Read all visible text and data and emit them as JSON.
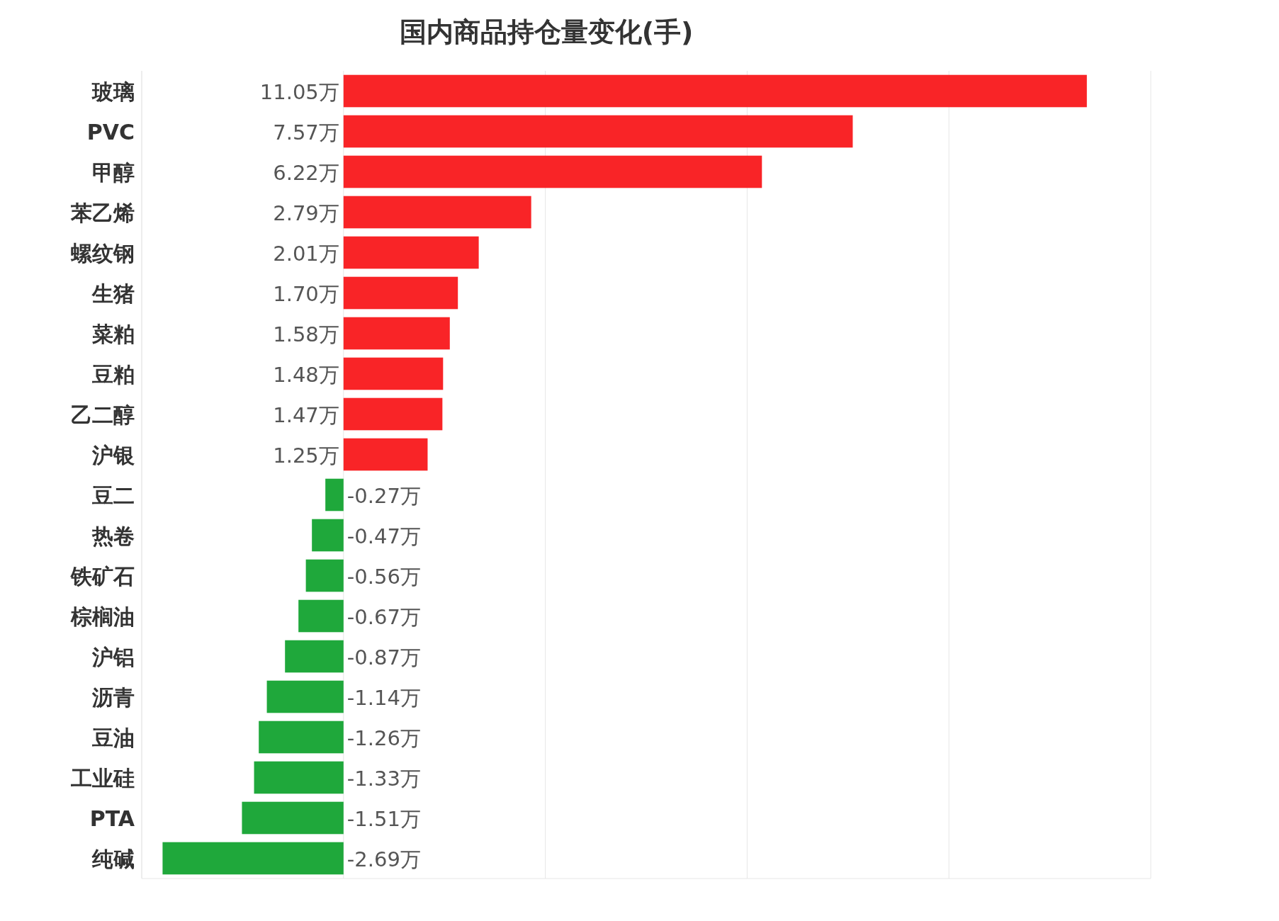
{
  "chart_data": {
    "type": "bar",
    "orientation": "horizontal",
    "title": "国内商品持仓量变化(手)",
    "categories": [
      "玻璃",
      "PVC",
      "甲醇",
      "苯乙烯",
      "螺纹钢",
      "生猪",
      "菜粕",
      "豆粕",
      "乙二醇",
      "沪银",
      "豆二",
      "热卷",
      "铁矿石",
      "棕榈油",
      "沪铝",
      "沥青",
      "豆油",
      "工业硅",
      "PTA",
      "纯碱"
    ],
    "series": [
      {
        "values": [
          11.05,
          7.57,
          6.22,
          2.79,
          2.01,
          1.7,
          1.58,
          1.48,
          1.47,
          1.25,
          -0.27,
          -0.47,
          -0.56,
          -0.67,
          -0.87,
          -1.14,
          -1.26,
          -1.33,
          -1.51,
          -2.69
        ],
        "colors": [
          "#f92427",
          "#f92427",
          "#f92427",
          "#f92427",
          "#f92427",
          "#f92427",
          "#f92427",
          "#f92427",
          "#f92427",
          "#f92427",
          "#1fa83b",
          "#1fa83b",
          "#1fa83b",
          "#1fa83b",
          "#1fa83b",
          "#1fa83b",
          "#1fa83b",
          "#1fa83b",
          "#1fa83b",
          "#1fa83b"
        ],
        "value_labels": [
          "11.05万",
          "7.57万",
          "6.22万",
          "2.79万",
          "2.01万",
          "1.70万",
          "1.58万",
          "1.48万",
          "1.47万",
          "1.25万",
          "-0.27万",
          "-0.47万",
          "-0.56万",
          "-0.67万",
          "-0.87万",
          "-1.14万",
          "-1.26万",
          "-1.33万",
          "-1.51万",
          "-2.69万"
        ]
      }
    ],
    "xlim": [
      -3,
      12
    ],
    "xticks": [
      {
        "value": -3,
        "label": null
      },
      {
        "value": 0,
        "label": null
      },
      {
        "value": 3,
        "label": null
      },
      {
        "value": 6,
        "label": null
      },
      {
        "value": 9,
        "label": null
      },
      {
        "value": 12,
        "label": null
      }
    ],
    "grid": "x",
    "tick_labels": "y"
  }
}
